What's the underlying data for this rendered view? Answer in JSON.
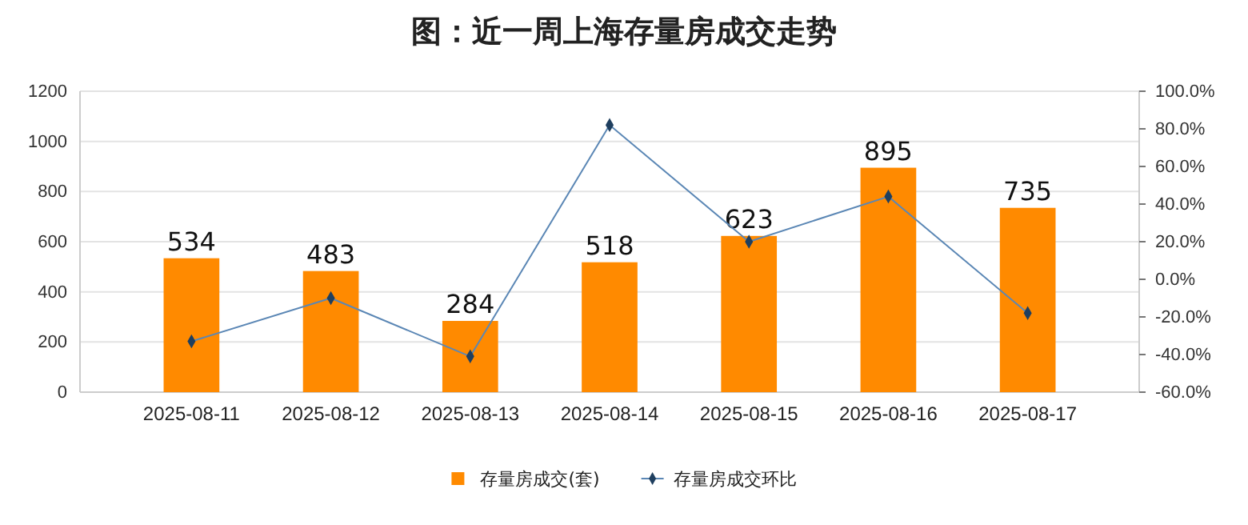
{
  "chart_data": {
    "type": "bar",
    "title": "图：近一周上海存量房成交走势",
    "categories": [
      "2025-08-11",
      "2025-08-12",
      "2025-08-13",
      "2025-08-14",
      "2025-08-15",
      "2025-08-16",
      "2025-08-17"
    ],
    "series": [
      {
        "name": "存量房成交(套)",
        "color": "#ff8a00",
        "values": [
          534,
          483,
          284,
          518,
          623,
          895,
          735
        ],
        "data_labels": true
      },
      {
        "name": "存量房成交环比",
        "type": "line",
        "axis": "y2",
        "color": "#5b87b5",
        "marker": "diamond",
        "values": [
          -33,
          -10,
          -41,
          82,
          20,
          44,
          -18
        ]
      }
    ],
    "ylim": [
      0,
      1200
    ],
    "yticks": [
      0,
      200,
      400,
      600,
      800,
      1000,
      1200
    ],
    "y2lim": [
      -60,
      100
    ],
    "y2ticks": [
      {
        "value": -60,
        "label": "-60.0%"
      },
      {
        "value": -40,
        "label": "-40.0%"
      },
      {
        "value": -20,
        "label": "-20.0%"
      },
      {
        "value": 0,
        "label": "0.0%"
      },
      {
        "value": 20,
        "label": "20.0%"
      },
      {
        "value": 40,
        "label": "40.0%"
      },
      {
        "value": 60,
        "label": "60.0%"
      },
      {
        "value": 80,
        "label": "80.0%"
      },
      {
        "value": 100,
        "label": "100.0%"
      }
    ],
    "grid": "y",
    "legend": "bottom"
  }
}
